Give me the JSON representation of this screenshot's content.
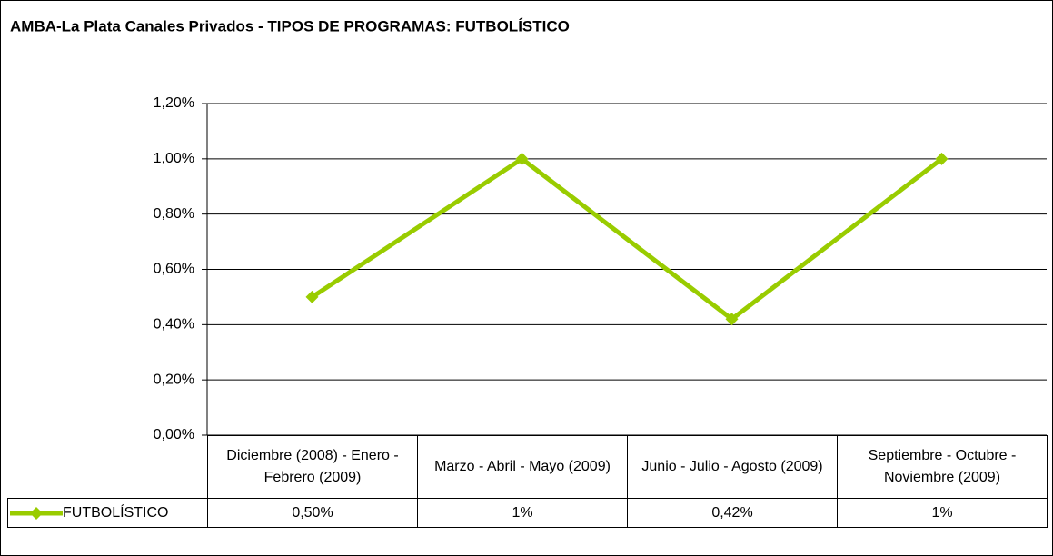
{
  "chart_data": {
    "type": "line",
    "title": "AMBA-La Plata Canales Privados - TIPOS DE PROGRAMAS: FUTBOLÍSTICO",
    "categories": [
      "Diciembre (2008) - Enero - Febrero (2009)",
      "Marzo - Abril - Mayo (2009)",
      "Junio - Julio - Agosto (2009)",
      "Septiembre - Octubre - Noviembre (2009)"
    ],
    "series": [
      {
        "name": "FUTBOLÍSTICO",
        "color": "#99cc00",
        "values": [
          0.5,
          1,
          0.42,
          1
        ],
        "value_labels": [
          "0,50%",
          "1%",
          "0,42%",
          "1%"
        ]
      }
    ],
    "ylim": [
      0,
      1.2
    ],
    "yticks": [
      {
        "value": 0,
        "label": "0,00%"
      },
      {
        "value": 0.2,
        "label": "0,20%"
      },
      {
        "value": 0.4,
        "label": "0,40%"
      },
      {
        "value": 0.6,
        "label": "0,60%"
      },
      {
        "value": 0.8,
        "label": "0,80%"
      },
      {
        "value": 1,
        "label": "1,00%"
      },
      {
        "value": 1.2,
        "label": "1,20%"
      }
    ],
    "grid": true
  }
}
